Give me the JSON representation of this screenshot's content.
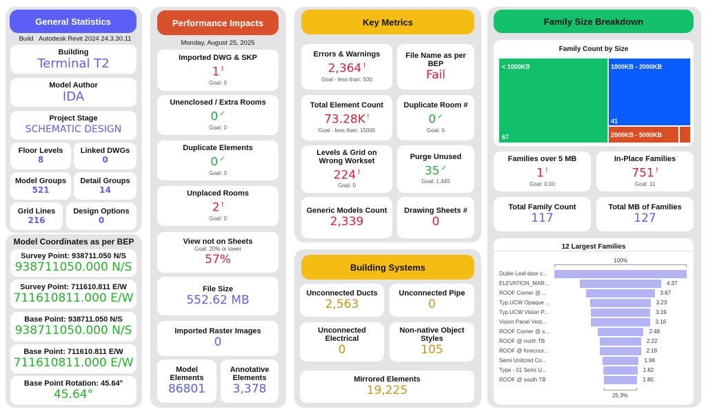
{
  "colors": {
    "general": "#5b5ff5",
    "performance": "#d9502c",
    "key": "#f5bc14",
    "building": "#f5bc14",
    "family": "#14c06b",
    "green": "#12c06a",
    "blue": "#0a5cff",
    "orange": "#d94e22"
  },
  "general": {
    "title": "General Statistics",
    "build_label": "Build",
    "build_value": "Autodesk Revit 2024 24.3.30.11",
    "cards": [
      {
        "label": "Building",
        "value": "Terminal T2"
      },
      {
        "label": "Model Author",
        "value": "IDA"
      },
      {
        "label": "Project Stage",
        "value": "SCHEMATIC DESIGN"
      },
      {
        "label": "Floor Levels",
        "value": "8"
      },
      {
        "label": "Linked DWGs",
        "value": "0"
      },
      {
        "label": "Model Groups",
        "value": "521"
      },
      {
        "label": "Detail Groups",
        "value": "14"
      },
      {
        "label": "Grid Lines",
        "value": "216"
      },
      {
        "label": "Design Options",
        "value": "0"
      }
    ]
  },
  "coordinates": {
    "title": "Model Coordinates as per BEP",
    "cards": [
      {
        "label": "Survey Point: 938711.050 N/S",
        "value": "938711050.000 N/S"
      },
      {
        "label": "Survey Point: 711610.811 E/W",
        "value": "711610811.000 E/W"
      },
      {
        "label": "Base Point: 938711.050 N/S",
        "value": "938711050.000 N/S"
      },
      {
        "label": "Base Point: 711610.811 E/W",
        "value": "711610811.000 E/W"
      },
      {
        "label": "Base Point Rotation: 45.64°",
        "value": "45.64°"
      }
    ]
  },
  "performance": {
    "title": "Performance Impacts",
    "date": "Monday, August 25, 2025",
    "cards": [
      {
        "label": "Imported DWG & SKP",
        "value": "1",
        "mark": "!",
        "goal": "Goal: 0"
      },
      {
        "label": "Unenclosed / Extra Rooms",
        "value": "0",
        "mark": "✓",
        "goal": "Goal: 0"
      },
      {
        "label": "Duplicate Elements",
        "value": "0",
        "mark": "✓",
        "goal": "Goal: 0"
      },
      {
        "label": "Unplaced Rooms",
        "value": "2",
        "mark": "!",
        "goal": "Goal: 0"
      },
      {
        "label": "View not on Sheets",
        "goal": "Goal: 20% or lower",
        "value": "57%"
      },
      {
        "label": "File Size",
        "value": "552.62 MB"
      },
      {
        "label": "Imported Raster Images",
        "value": "0"
      },
      {
        "label": "Model Elements",
        "value": "86801"
      },
      {
        "label": "Annotative Elements",
        "value": "3,378"
      }
    ]
  },
  "key_metrics": {
    "title": "Key Metrics",
    "cards": [
      {
        "label": "Errors & Warnings",
        "value": "2,364",
        "mark": "!",
        "goal": "Goal - less than: 500"
      },
      {
        "label": "File Name as per BEP",
        "value": "Fail"
      },
      {
        "label": "Total Element Count",
        "value": "73.28K",
        "mark": "!",
        "goal": "Goal - less than: 15000"
      },
      {
        "label": "Duplicate Room #",
        "value": "0",
        "mark": "✓",
        "goal": "Goal: 0"
      },
      {
        "label": "Levels & Grid on Wrong Workset",
        "value": "224",
        "mark": "!",
        "goal": "Goal: 0"
      },
      {
        "label": "Purge Unused",
        "value": "35",
        "mark": "✓",
        "goal": "Goal: 1,445"
      },
      {
        "label": "Generic Models Count",
        "value": "2,339"
      },
      {
        "label": "Drawing Sheets #",
        "value": "0"
      }
    ]
  },
  "building_systems": {
    "title": "Building Systems",
    "cards": [
      {
        "label": "Unconnected Ducts",
        "value": "2,563"
      },
      {
        "label": "Unconnected Pipe",
        "value": "0"
      },
      {
        "label": "Unconnected Electrical",
        "value": "0"
      },
      {
        "label": "Non-native Object Styles",
        "value": "105"
      },
      {
        "label": "Mirrored Elements",
        "value": "19,225"
      }
    ]
  },
  "family": {
    "title": "Family Size Breakdown",
    "cards": [
      {
        "label": "Families over 5 MB",
        "value": "1",
        "mark": "!",
        "goal": "Goal: 0.00"
      },
      {
        "label": "In-Place Families",
        "value": "751",
        "mark": "!",
        "goal": "Goal: 11"
      },
      {
        "label": "Total Family Count",
        "value": "117"
      },
      {
        "label": "Total MB of Families",
        "value": "127"
      }
    ]
  },
  "chart_data": [
    {
      "type": "treemap",
      "title": "Family Count by Size",
      "categories": [
        "< 1000KB",
        "1000KB - 2000KB",
        "2000KB - 5000KB"
      ],
      "values": [
        67,
        41,
        "n/a"
      ],
      "value_labels": [
        "67",
        "41",
        ""
      ]
    },
    {
      "type": "funnel",
      "title": "12 Largest Families",
      "top_label": "100%",
      "bottom_label": "25.3%",
      "categories": [
        "Duble Leaf door c...",
        "ELEVATION_MAR...",
        "ROOF Corner @ ...",
        "Typ.UCW Opaque ...",
        "Typ.UCW Vision P...",
        "Vision Panel Vest...",
        "ROOF Corner @ s...",
        "ROOF @ north TB",
        "ROOF @ forecour...",
        "Semi Unitized Co...",
        "Type - 01 Semi U...",
        "ROOF @ south TB"
      ],
      "values": [
        7.11,
        4.37,
        3.67,
        3.23,
        3.19,
        3.16,
        2.48,
        2.22,
        2.19,
        1.96,
        1.82,
        1.8
      ],
      "value_labels": [
        "",
        "4.37",
        "3.67",
        "3.23",
        "3.19",
        "3.16",
        "2.48",
        "2.22",
        "2.19",
        "1.96",
        "1.82",
        "1.80"
      ]
    }
  ]
}
